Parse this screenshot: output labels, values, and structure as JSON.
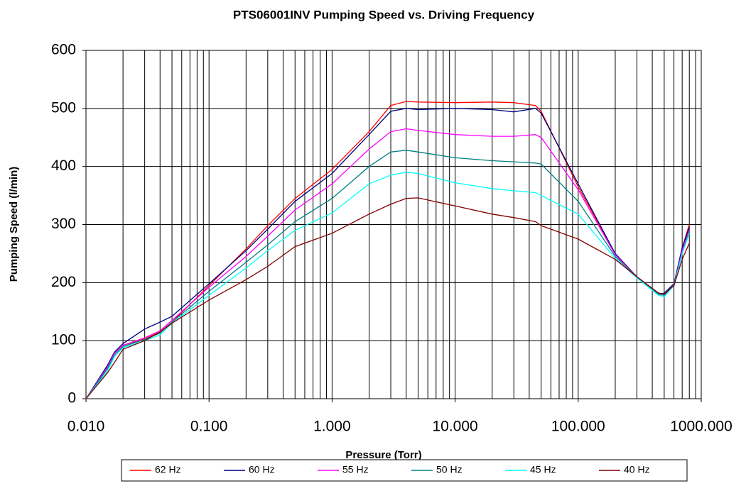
{
  "chart_data": {
    "type": "line",
    "title": "PTS06001INV Pumping Speed vs. Driving Frequency",
    "x_label": "Pressure (Torr)",
    "y_label": "Pumping Speed (l/min)",
    "xscale": "log",
    "grid": true,
    "legend": "bottom",
    "xlim": [
      0.01,
      1000
    ],
    "ylim": [
      0,
      600
    ],
    "xticks": [
      {
        "value": 0.01,
        "label": "0.010"
      },
      {
        "value": 0.1,
        "label": "0.100"
      },
      {
        "value": 1,
        "label": "1.000"
      },
      {
        "value": 10,
        "label": "10.000"
      },
      {
        "value": 100,
        "label": "100.000"
      },
      {
        "value": 1000,
        "label": "1000.000"
      }
    ],
    "xminorticks": [
      0.02,
      0.03,
      0.04,
      0.05,
      0.06,
      0.07,
      0.08,
      0.09,
      0.2,
      0.3,
      0.4,
      0.5,
      0.6,
      0.7,
      0.8,
      0.9,
      2,
      3,
      4,
      5,
      6,
      7,
      8,
      9,
      20,
      30,
      40,
      50,
      60,
      70,
      80,
      90,
      200,
      300,
      400,
      500,
      600,
      700,
      800,
      900
    ],
    "yticks": [
      0,
      100,
      200,
      300,
      400,
      500,
      600
    ],
    "x": [
      0.01,
      0.015,
      0.017,
      0.02,
      0.03,
      0.04,
      0.05,
      0.1,
      0.2,
      0.3,
      0.5,
      1,
      2,
      3,
      4,
      5,
      10,
      20,
      30,
      45,
      50,
      100,
      200,
      300,
      450,
      500,
      600,
      700,
      800
    ],
    "series": [
      {
        "name": "62 Hz",
        "color": "#ff0000",
        "values": [
          0,
          55,
          78,
          92,
          103,
          115,
          132,
          195,
          258,
          298,
          345,
          395,
          460,
          505,
          512,
          511,
          510,
          511,
          510,
          505,
          495,
          365,
          250,
          210,
          182,
          180,
          195,
          260,
          300
        ]
      },
      {
        "name": "60 Hz",
        "color": "#000080",
        "values": [
          0,
          58,
          80,
          95,
          120,
          132,
          142,
          198,
          255,
          292,
          340,
          388,
          455,
          495,
          500,
          498,
          500,
          498,
          494,
          500,
          492,
          370,
          250,
          210,
          180,
          182,
          198,
          260,
          295
        ]
      },
      {
        "name": "55 Hz",
        "color": "#ff00ff",
        "values": [
          0,
          55,
          78,
          92,
          105,
          117,
          135,
          192,
          245,
          280,
          325,
          370,
          430,
          460,
          465,
          462,
          455,
          452,
          452,
          455,
          450,
          360,
          248,
          210,
          182,
          180,
          195,
          255,
          290
        ]
      },
      {
        "name": "50 Hz",
        "color": "#008080",
        "values": [
          0,
          52,
          75,
          90,
          102,
          113,
          132,
          185,
          235,
          265,
          305,
          345,
          400,
          425,
          428,
          425,
          415,
          410,
          408,
          406,
          404,
          340,
          245,
          210,
          180,
          178,
          195,
          250,
          288
        ]
      },
      {
        "name": "45 Hz",
        "color": "#00ffff",
        "values": [
          0,
          48,
          72,
          88,
          100,
          110,
          130,
          178,
          225,
          255,
          290,
          320,
          370,
          385,
          390,
          388,
          372,
          362,
          358,
          355,
          350,
          318,
          242,
          208,
          178,
          176,
          195,
          250,
          285
        ]
      },
      {
        "name": "40 Hz",
        "color": "#800000",
        "values": [
          0,
          45,
          62,
          85,
          100,
          115,
          130,
          170,
          205,
          228,
          262,
          285,
          318,
          335,
          345,
          346,
          332,
          318,
          312,
          305,
          298,
          275,
          240,
          210,
          182,
          180,
          195,
          240,
          268
        ]
      }
    ]
  }
}
